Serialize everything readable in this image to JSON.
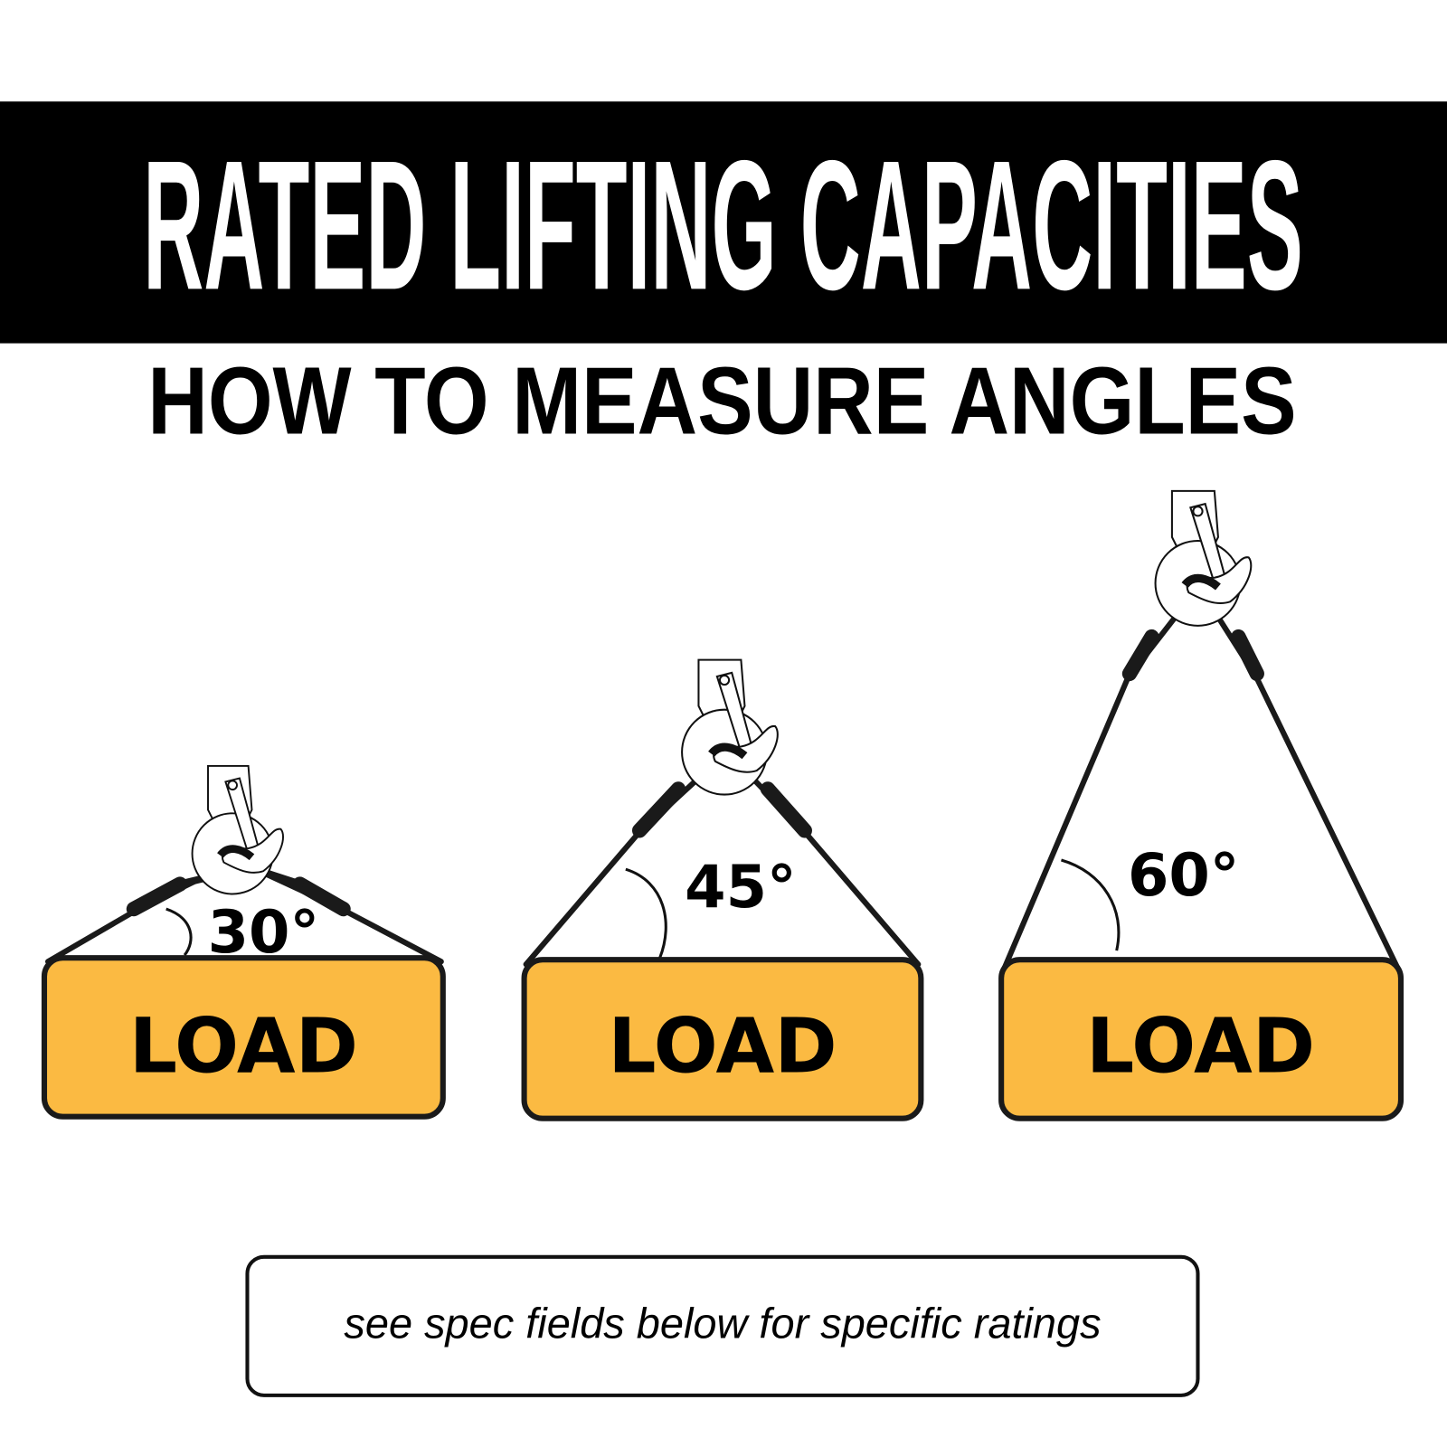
{
  "header": {
    "title": "RATED LIFTING CAPACITIES",
    "banner_color": "#000000"
  },
  "subtitle": "HOW TO MEASURE ANGLES",
  "diagrams": [
    {
      "angle_label": "30°",
      "load_label": "LOAD"
    },
    {
      "angle_label": "45°",
      "load_label": "LOAD"
    },
    {
      "angle_label": "60°",
      "load_label": "LOAD"
    }
  ],
  "colors": {
    "load_fill": "#FBBA42",
    "outline": "#1a1a1a"
  },
  "footer_note": "see spec fields below for specific ratings"
}
